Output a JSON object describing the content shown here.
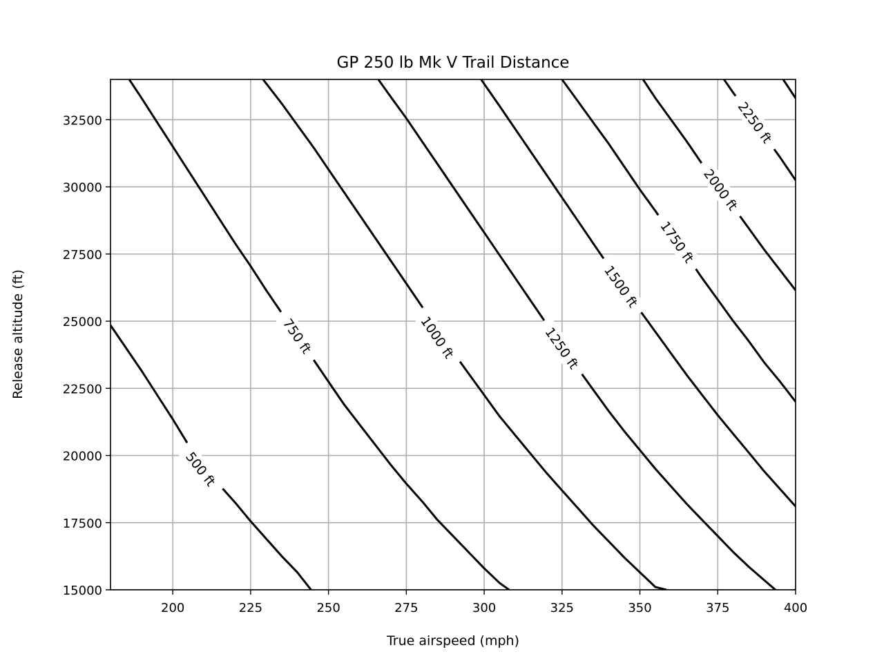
{
  "chart_data": {
    "type": "contour",
    "title": "GP 250 lb Mk V Trail Distance",
    "xlabel": "True airspeed (mph)",
    "ylabel": "Release altitude (ft)",
    "xlim": [
      180,
      400
    ],
    "ylim": [
      15000,
      34000
    ],
    "xticks": [
      200,
      225,
      250,
      275,
      300,
      325,
      350,
      375,
      400
    ],
    "yticks": [
      15000,
      17500,
      20000,
      22500,
      25000,
      27500,
      30000,
      32500
    ],
    "grid": true,
    "line_color": "#000000",
    "grid_color": "#b0b0b0",
    "contours": [
      {
        "label": "500 ft",
        "points": [
          [
            180,
            24850
          ],
          [
            185,
            24000
          ],
          [
            190,
            23150
          ],
          [
            195,
            22250
          ],
          [
            200,
            21350
          ],
          [
            205,
            20400
          ],
          [
            210,
            19600
          ],
          [
            215,
            18900
          ],
          [
            220,
            18250
          ],
          [
            225,
            17550
          ],
          [
            230,
            16900
          ],
          [
            235,
            16250
          ],
          [
            240,
            15650
          ],
          [
            244.4,
            15000
          ]
        ],
        "label_at": [
          209,
          19500
        ]
      },
      {
        "label": "750 ft",
        "points": [
          [
            186,
            34000
          ],
          [
            190,
            33300
          ],
          [
            195,
            32400
          ],
          [
            200,
            31500
          ],
          [
            205,
            30600
          ],
          [
            210,
            29700
          ],
          [
            215,
            28800
          ],
          [
            220,
            27900
          ],
          [
            225,
            27050
          ],
          [
            230,
            26150
          ],
          [
            235,
            25300
          ],
          [
            240,
            24450
          ],
          [
            245,
            23600
          ],
          [
            250,
            22750
          ],
          [
            255,
            21900
          ],
          [
            260,
            21150
          ],
          [
            265,
            20400
          ],
          [
            270,
            19650
          ],
          [
            275,
            18950
          ],
          [
            280,
            18300
          ],
          [
            285,
            17600
          ],
          [
            290,
            17000
          ],
          [
            295,
            16400
          ],
          [
            300,
            15800
          ],
          [
            305,
            15250
          ],
          [
            308,
            15000
          ]
        ],
        "label_at": [
          240,
          24450
        ]
      },
      {
        "label": "1000 ft",
        "points": [
          [
            229,
            34000
          ],
          [
            235,
            33100
          ],
          [
            240,
            32300
          ],
          [
            245,
            31500
          ],
          [
            250,
            30650
          ],
          [
            255,
            29800
          ],
          [
            260,
            28950
          ],
          [
            265,
            28100
          ],
          [
            270,
            27250
          ],
          [
            275,
            26400
          ],
          [
            280,
            25550
          ],
          [
            285,
            24700
          ],
          [
            290,
            23850
          ],
          [
            295,
            23050
          ],
          [
            300,
            22250
          ],
          [
            305,
            21450
          ],
          [
            310,
            20750
          ],
          [
            315,
            20050
          ],
          [
            320,
            19350
          ],
          [
            325,
            18700
          ],
          [
            330,
            18050
          ],
          [
            335,
            17400
          ],
          [
            340,
            16800
          ],
          [
            345,
            16200
          ],
          [
            350,
            15650
          ],
          [
            355,
            15100
          ],
          [
            358.5,
            15000
          ]
        ],
        "label_at": [
          285,
          24400
        ]
      },
      {
        "label": "1250 ft",
        "points": [
          [
            266,
            34000
          ],
          [
            270,
            33350
          ],
          [
            275,
            32550
          ],
          [
            280,
            31700
          ],
          [
            285,
            30850
          ],
          [
            290,
            30000
          ],
          [
            295,
            29150
          ],
          [
            300,
            28300
          ],
          [
            305,
            27450
          ],
          [
            310,
            26600
          ],
          [
            315,
            25750
          ],
          [
            320,
            24900
          ],
          [
            325,
            24050
          ],
          [
            330,
            23250
          ],
          [
            335,
            22450
          ],
          [
            340,
            21650
          ],
          [
            345,
            20900
          ],
          [
            350,
            20200
          ],
          [
            355,
            19500
          ],
          [
            360,
            18850
          ],
          [
            365,
            18200
          ],
          [
            370,
            17600
          ],
          [
            375,
            17000
          ],
          [
            380,
            16400
          ],
          [
            385,
            15850
          ],
          [
            390,
            15350
          ],
          [
            395,
            14850
          ],
          [
            400,
            15000
          ]
        ],
        "label_at": [
          325,
          24000
        ]
      },
      {
        "label": "1500 ft",
        "points": [
          [
            299,
            34000
          ],
          [
            305,
            33000
          ],
          [
            310,
            32150
          ],
          [
            315,
            31300
          ],
          [
            320,
            30450
          ],
          [
            325,
            29600
          ],
          [
            330,
            28750
          ],
          [
            335,
            27900
          ],
          [
            340,
            27050
          ],
          [
            345,
            26200
          ],
          [
            350,
            25400
          ],
          [
            355,
            24600
          ],
          [
            360,
            23800
          ],
          [
            365,
            23000
          ],
          [
            370,
            22250
          ],
          [
            375,
            21500
          ],
          [
            380,
            20800
          ],
          [
            385,
            20100
          ],
          [
            390,
            19400
          ],
          [
            395,
            18750
          ],
          [
            400,
            18100
          ]
        ],
        "label_at": [
          344,
          26300
        ]
      },
      {
        "label": "1750 ft",
        "points": [
          [
            325,
            34000
          ],
          [
            330,
            33200
          ],
          [
            335,
            32400
          ],
          [
            340,
            31600
          ],
          [
            345,
            30750
          ],
          [
            350,
            29900
          ],
          [
            355,
            29100
          ],
          [
            360,
            28250
          ],
          [
            365,
            27450
          ],
          [
            370,
            26600
          ],
          [
            375,
            25800
          ],
          [
            380,
            25000
          ],
          [
            385,
            24250
          ],
          [
            390,
            23450
          ],
          [
            395,
            22750
          ],
          [
            400,
            22000
          ]
        ],
        "label_at": [
          362,
          27950
        ]
      },
      {
        "label": "2000 ft",
        "points": [
          [
            351,
            34000
          ],
          [
            355,
            33300
          ],
          [
            360,
            32500
          ],
          [
            365,
            31700
          ],
          [
            370,
            30850
          ],
          [
            375,
            30050
          ],
          [
            380,
            29250
          ],
          [
            385,
            28450
          ],
          [
            390,
            27650
          ],
          [
            395,
            26900
          ],
          [
            400,
            26150
          ]
        ],
        "label_at": [
          376,
          29900
        ]
      },
      {
        "label": "2250 ft",
        "points": [
          [
            377,
            34000
          ],
          [
            380,
            33500
          ],
          [
            385,
            32700
          ],
          [
            390,
            31900
          ],
          [
            395,
            31100
          ],
          [
            400,
            30250
          ]
        ],
        "label_at": [
          387,
          32400
        ]
      },
      {
        "label": "",
        "points": [
          [
            396,
            34000
          ],
          [
            398,
            33650
          ],
          [
            400,
            33300
          ]
        ],
        "label_at": null
      }
    ]
  }
}
